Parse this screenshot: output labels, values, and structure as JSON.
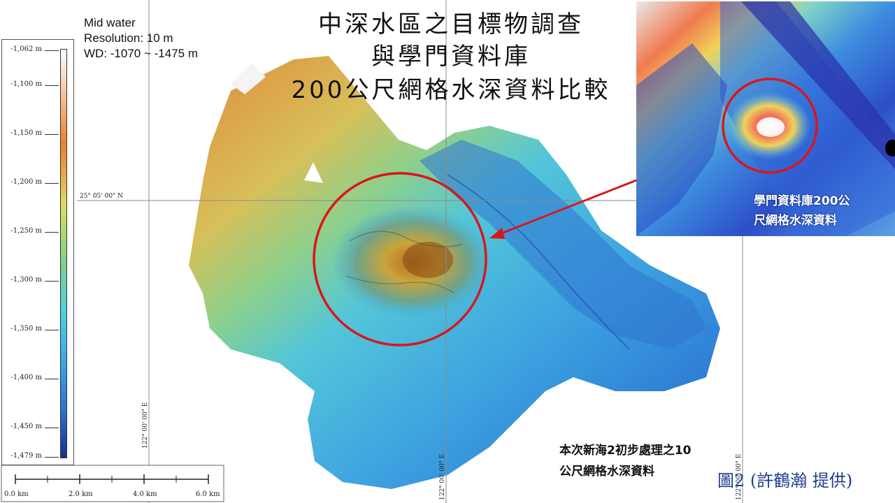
{
  "title": {
    "line1": "中深水區之目標物調查",
    "line2": "與學門資料庫",
    "line3": "200公尺網格水深資料比較"
  },
  "info": {
    "line1": "Mid water",
    "line2": "Resolution: 10 m",
    "line3": "WD: -1070 ~ -1475 m"
  },
  "legend": {
    "ticks": [
      "-1,062 m",
      "-1,100 m",
      "-1,150 m",
      "-1,200 m",
      "-1,250 m",
      "-1,300 m",
      "-1,350 m",
      "-1,400 m",
      "-1,450 m",
      "-1,479 m"
    ],
    "colors": [
      "#ffffff",
      "#ef9d5a",
      "#e8812d",
      "#dbdc63",
      "#7fd08a",
      "#4fd3d6",
      "#3aa9e6",
      "#2f72d2",
      "#1a2f8a"
    ]
  },
  "grid": {
    "lat_label": "25° 05' 00\" N",
    "lon_label_1": "122° 00' 00\" E",
    "lon_label_2": "122° 00' 00\" E",
    "lon_label_3": "122° 00' 00\" E"
  },
  "scalebar": {
    "labels": [
      "0.0 km",
      "2.0 km",
      "4.0 km",
      "6.0 km"
    ]
  },
  "inset": {
    "label_line1": "學門資料庫200公",
    "label_line2": "尺網格水深資料"
  },
  "note": {
    "line1": "本次新海2初步處理之10",
    "line2": "公尺網格水深資料"
  },
  "credit": "圖2 (許鶴瀚 提供)",
  "colors": {
    "highlight_circle": "#d9161c",
    "arrow": "#d9161c",
    "credit_text": "#1f3e8c"
  }
}
